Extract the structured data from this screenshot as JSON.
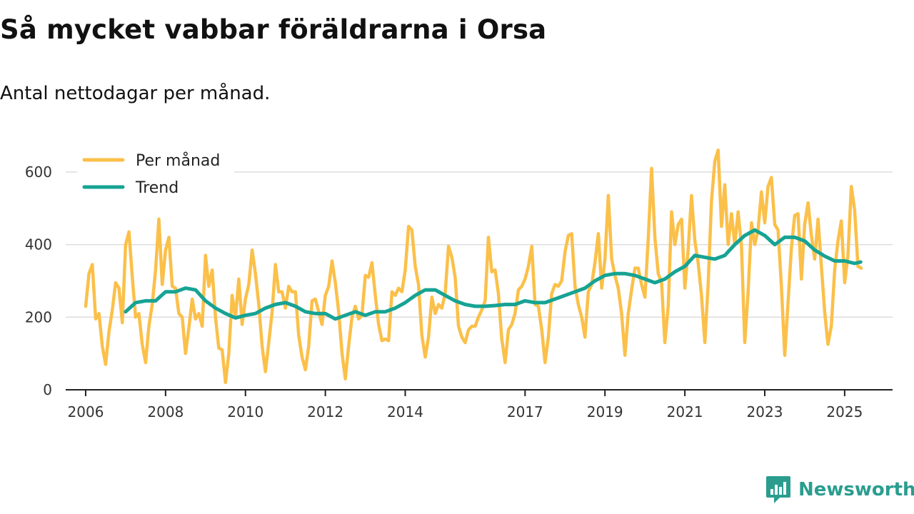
{
  "title": "Så mycket vabbar föräldrarna i Orsa",
  "subtitle": "Antal nettodagar per månad.",
  "brand": {
    "name": "Newsworthy",
    "icon": "newsworthy-logo-icon"
  },
  "colors": {
    "monthly": "#fbc04a",
    "trend": "#16a394",
    "grid": "#dddddd",
    "axis": "#222222"
  },
  "chart_data": {
    "type": "line",
    "title": "Så mycket vabbar föräldrarna i Orsa",
    "subtitle": "Antal nettodagar per månad.",
    "xlabel": "",
    "ylabel": "",
    "ylim": [
      0,
      700
    ],
    "xlim": [
      2005.5,
      2026.2
    ],
    "y_ticks": [
      0,
      200,
      400,
      600
    ],
    "x_ticks": [
      2006,
      2008,
      2010,
      2012,
      2014,
      2017,
      2019,
      2021,
      2023,
      2025
    ],
    "x_tick_labels": [
      "2006",
      "2008",
      "2010",
      "2012",
      "2014",
      "2017",
      "2019",
      "2021",
      "2023",
      "2025"
    ],
    "grid": true,
    "legend": {
      "position": "top-left",
      "entries": [
        "Per månad",
        "Trend"
      ]
    },
    "series": [
      {
        "name": "Per månad",
        "x": [
          2006.0,
          2006.083,
          2006.167,
          2006.25,
          2006.333,
          2006.417,
          2006.5,
          2006.583,
          2006.667,
          2006.75,
          2006.833,
          2006.917,
          2007.0,
          2007.083,
          2007.167,
          2007.25,
          2007.333,
          2007.417,
          2007.5,
          2007.583,
          2007.667,
          2007.75,
          2007.833,
          2007.917,
          2008.0,
          2008.083,
          2008.167,
          2008.25,
          2008.333,
          2008.417,
          2008.5,
          2008.583,
          2008.667,
          2008.75,
          2008.833,
          2008.917,
          2009.0,
          2009.083,
          2009.167,
          2009.25,
          2009.333,
          2009.417,
          2009.5,
          2009.583,
          2009.667,
          2009.75,
          2009.833,
          2009.917,
          2010.0,
          2010.083,
          2010.167,
          2010.25,
          2010.333,
          2010.417,
          2010.5,
          2010.583,
          2010.667,
          2010.75,
          2010.833,
          2010.917,
          2011.0,
          2011.083,
          2011.167,
          2011.25,
          2011.333,
          2011.417,
          2011.5,
          2011.583,
          2011.667,
          2011.75,
          2011.833,
          2011.917,
          2012.0,
          2012.083,
          2012.167,
          2012.25,
          2012.333,
          2012.417,
          2012.5,
          2012.583,
          2012.667,
          2012.75,
          2012.833,
          2012.917,
          2013.0,
          2013.083,
          2013.167,
          2013.25,
          2013.333,
          2013.417,
          2013.5,
          2013.583,
          2013.667,
          2013.75,
          2013.833,
          2013.917,
          2014.0,
          2014.083,
          2014.167,
          2014.25,
          2014.333,
          2014.417,
          2014.5,
          2014.583,
          2014.667,
          2014.75,
          2014.833,
          2014.917,
          2015.0,
          2015.083,
          2015.167,
          2015.25,
          2015.333,
          2015.417,
          2015.5,
          2015.583,
          2015.667,
          2015.75,
          2015.833,
          2015.917,
          2016.0,
          2016.083,
          2016.167,
          2016.25,
          2016.333,
          2016.417,
          2016.5,
          2016.583,
          2016.667,
          2016.75,
          2016.833,
          2016.917,
          2017.0,
          2017.083,
          2017.167,
          2017.25,
          2017.333,
          2017.417,
          2017.5,
          2017.583,
          2017.667,
          2017.75,
          2017.833,
          2017.917,
          2018.0,
          2018.083,
          2018.167,
          2018.25,
          2018.333,
          2018.417,
          2018.5,
          2018.583,
          2018.667,
          2018.75,
          2018.833,
          2018.917,
          2019.0,
          2019.083,
          2019.167,
          2019.25,
          2019.333,
          2019.417,
          2019.5,
          2019.583,
          2019.667,
          2019.75,
          2019.833,
          2019.917,
          2020.0,
          2020.083,
          2020.167,
          2020.25,
          2020.333,
          2020.417,
          2020.5,
          2020.583,
          2020.667,
          2020.75,
          2020.833,
          2020.917,
          2021.0,
          2021.083,
          2021.167,
          2021.25,
          2021.333,
          2021.417,
          2021.5,
          2021.583,
          2021.667,
          2021.75,
          2021.833,
          2021.917,
          2022.0,
          2022.083,
          2022.167,
          2022.25,
          2022.333,
          2022.417,
          2022.5,
          2022.583,
          2022.667,
          2022.75,
          2022.833,
          2022.917,
          2023.0,
          2023.083,
          2023.167,
          2023.25,
          2023.333,
          2023.417,
          2023.5,
          2023.583,
          2023.667,
          2023.75,
          2023.833,
          2023.917,
          2024.0,
          2024.083,
          2024.167,
          2024.25,
          2024.333,
          2024.417,
          2024.5,
          2024.583,
          2024.667,
          2024.75,
          2024.833,
          2024.917,
          2025.0,
          2025.083,
          2025.167,
          2025.25,
          2025.333,
          2025.417
        ],
        "values": [
          230,
          320,
          345,
          195,
          210,
          120,
          70,
          160,
          220,
          295,
          280,
          185,
          400,
          435,
          310,
          200,
          210,
          125,
          75,
          175,
          235,
          330,
          470,
          290,
          385,
          420,
          285,
          280,
          210,
          200,
          100,
          170,
          250,
          195,
          210,
          175,
          370,
          285,
          330,
          200,
          115,
          110,
          20,
          100,
          260,
          200,
          305,
          180,
          250,
          290,
          385,
          320,
          235,
          120,
          50,
          130,
          215,
          345,
          270,
          270,
          225,
          285,
          270,
          270,
          150,
          90,
          55,
          120,
          245,
          250,
          215,
          180,
          260,
          285,
          355,
          295,
          215,
          100,
          30,
          120,
          200,
          230,
          195,
          205,
          315,
          310,
          350,
          260,
          180,
          135,
          140,
          135,
          270,
          260,
          280,
          270,
          330,
          450,
          440,
          340,
          290,
          150,
          90,
          145,
          255,
          210,
          235,
          225,
          265,
          395,
          365,
          310,
          175,
          145,
          130,
          165,
          175,
          175,
          200,
          220,
          245,
          420,
          325,
          330,
          265,
          140,
          75,
          165,
          180,
          210,
          275,
          285,
          305,
          340,
          395,
          235,
          230,
          165,
          75,
          145,
          265,
          290,
          285,
          300,
          380,
          425,
          430,
          285,
          235,
          200,
          145,
          270,
          290,
          350,
          430,
          280,
          360,
          535,
          360,
          315,
          280,
          210,
          95,
          210,
          275,
          335,
          335,
          290,
          255,
          415,
          610,
          420,
          320,
          295,
          130,
          230,
          490,
          400,
          455,
          470,
          280,
          385,
          535,
          410,
          350,
          260,
          130,
          290,
          520,
          630,
          660,
          450,
          565,
          400,
          485,
          400,
          490,
          395,
          130,
          270,
          460,
          400,
          440,
          545,
          460,
          560,
          585,
          455,
          440,
          285,
          95,
          240,
          390,
          480,
          485,
          305,
          455,
          515,
          425,
          360,
          470,
          340,
          215,
          125,
          175,
          330,
          410,
          465,
          295,
          370,
          560,
          495,
          340,
          335
        ]
      },
      {
        "name": "Trend",
        "x": [
          2007.0,
          2007.25,
          2007.5,
          2007.75,
          2008.0,
          2008.25,
          2008.5,
          2008.75,
          2009.0,
          2009.25,
          2009.5,
          2009.75,
          2010.0,
          2010.25,
          2010.5,
          2010.75,
          2011.0,
          2011.25,
          2011.5,
          2011.75,
          2012.0,
          2012.25,
          2012.5,
          2012.75,
          2013.0,
          2013.25,
          2013.5,
          2013.75,
          2014.0,
          2014.25,
          2014.5,
          2014.75,
          2015.0,
          2015.25,
          2015.5,
          2015.75,
          2016.0,
          2016.25,
          2016.5,
          2016.75,
          2017.0,
          2017.25,
          2017.5,
          2017.75,
          2018.0,
          2018.25,
          2018.5,
          2018.75,
          2019.0,
          2019.25,
          2019.5,
          2019.75,
          2020.0,
          2020.25,
          2020.5,
          2020.75,
          2021.0,
          2021.25,
          2021.5,
          2021.75,
          2022.0,
          2022.25,
          2022.5,
          2022.75,
          2023.0,
          2023.25,
          2023.5,
          2023.75,
          2024.0,
          2024.25,
          2024.5,
          2024.75,
          2025.0,
          2025.25,
          2025.4
        ],
        "values": [
          215,
          240,
          245,
          245,
          270,
          270,
          280,
          275,
          245,
          225,
          210,
          198,
          205,
          210,
          225,
          235,
          240,
          230,
          215,
          210,
          210,
          195,
          205,
          215,
          205,
          215,
          215,
          225,
          240,
          260,
          275,
          275,
          260,
          245,
          235,
          230,
          230,
          232,
          235,
          235,
          245,
          240,
          240,
          250,
          260,
          270,
          280,
          300,
          315,
          320,
          320,
          315,
          305,
          295,
          305,
          325,
          340,
          370,
          365,
          360,
          370,
          400,
          425,
          440,
          425,
          400,
          420,
          420,
          410,
          385,
          368,
          355,
          355,
          348,
          352
        ]
      }
    ]
  }
}
